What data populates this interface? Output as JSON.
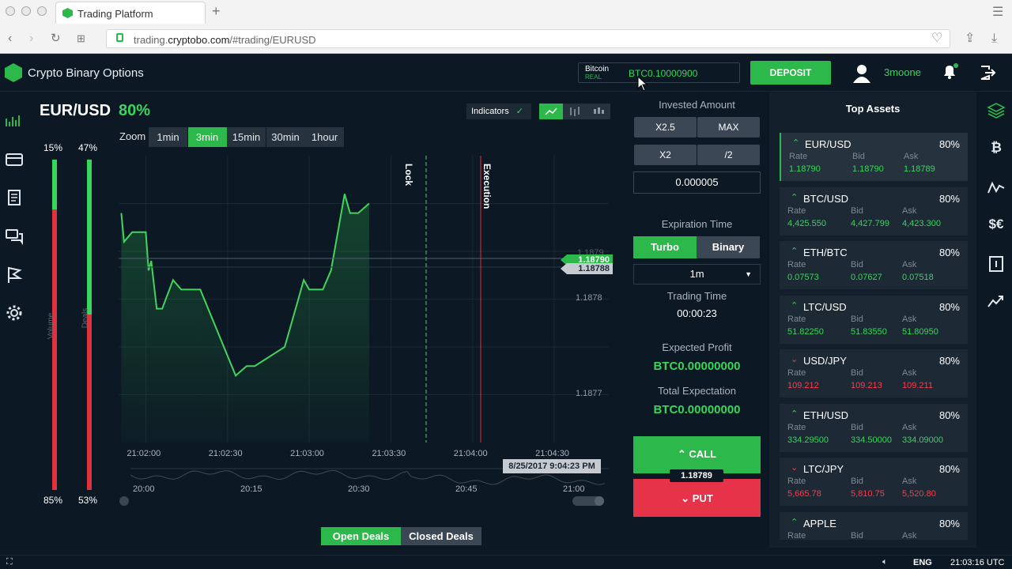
{
  "browser": {
    "tab_title": "Trading Platform",
    "url_prefix": "trading.",
    "url_domain": "cryptobo.com",
    "url_path": "/#trading/EURUSD"
  },
  "header": {
    "brand": "Crypto Binary Options",
    "currency_name": "Bitcoin",
    "account_type": "REAL",
    "balance": "BTC0.10000900",
    "deposit_label": "DEPOSIT",
    "username": "3moone"
  },
  "chart": {
    "pair": "EUR/USD",
    "payout": "80%",
    "indicators_label": "Indicators",
    "zoom_label": "Zoom",
    "zoom_options": [
      "1min",
      "3min",
      "15min",
      "30min",
      "1hour"
    ],
    "zoom_selected": "3min",
    "volume_label": "Volume",
    "deals_label": "Deals",
    "volume_top_pct": "15%",
    "volume_bottom_pct": "85%",
    "volume_up_fraction": 0.15,
    "deals_top_pct": "47%",
    "deals_bottom_pct": "53%",
    "deals_up_fraction": 0.47,
    "lock_label": "Lock",
    "execution_label": "Execution",
    "price_tag_1": "1.18790",
    "price_tag_2": "1.18788",
    "faint_tag": "1.1879",
    "y_ticks": [
      "1.1878",
      "1.1877"
    ],
    "x_ticks": [
      "21:02:00",
      "21:02:30",
      "21:03:00",
      "21:03:30",
      "21:04:00",
      "21:04:30"
    ],
    "nav_ticks": [
      "20:00",
      "20:15",
      "20:30",
      "20:45",
      "21:00"
    ],
    "timestamp_tooltip": "8/25/2017 9:04:23 PM"
  },
  "chart_data": {
    "type": "line",
    "x_range": [
      "21:01:50",
      "21:04:50"
    ],
    "ylim": [
      1.18765,
      1.18795
    ],
    "series": [
      {
        "x": [
          "21:01:51",
          "21:01:52",
          "21:01:55",
          "21:02:00",
          "21:02:01",
          "21:02:02",
          "21:02:04",
          "21:02:06",
          "21:02:10",
          "21:02:13",
          "21:02:17",
          "21:02:20",
          "21:02:33",
          "21:02:37",
          "21:02:40",
          "21:02:51",
          "21:02:55",
          "21:02:58",
          "21:03:00",
          "21:03:05",
          "21:03:08",
          "21:03:13",
          "21:03:14",
          "21:03:15",
          "21:03:18",
          "21:03:22"
        ],
        "y": [
          1.18789,
          1.18786,
          1.18787,
          1.18787,
          1.18783,
          1.18784,
          1.18779,
          1.18779,
          1.18782,
          1.18781,
          1.18781,
          1.18781,
          1.18772,
          1.18773,
          1.18773,
          1.18775,
          1.18779,
          1.18782,
          1.18781,
          1.18781,
          1.18783,
          1.18791,
          1.1879,
          1.18789,
          1.18789,
          1.1879
        ]
      }
    ]
  },
  "invest": {
    "title": "Invested Amount",
    "mult_buttons": [
      "X2.5",
      "MAX",
      "X2",
      "/2"
    ],
    "amount": "0.000005"
  },
  "expiration": {
    "title": "Expiration Time",
    "modes": [
      "Turbo",
      "Binary"
    ],
    "mode_selected": "Turbo",
    "duration": "1m",
    "trading_time_label": "Trading Time",
    "trading_time": "00:00:23",
    "expected_profit_label": "Expected Profit",
    "expected_profit": "BTC0.00000000",
    "total_expectation_label": "Total Expectation",
    "total_expectation": "BTC0.00000000",
    "call_label": "CALL",
    "current_price": "1.18789",
    "put_label": "PUT"
  },
  "deals_tabs": {
    "open": "Open Deals",
    "closed": "Closed Deals"
  },
  "assets": {
    "title": "Top Assets",
    "col_labels": [
      "Rate",
      "Bid",
      "Ask"
    ],
    "items": [
      {
        "name": "EUR/USD",
        "pct": "80%",
        "dir": "up",
        "rate": "1.18790",
        "bid": "1.18790",
        "ask": "1.18789",
        "color": "#38d65a"
      },
      {
        "name": "BTC/USD",
        "pct": "80%",
        "dir": "up",
        "rate": "4,425.550",
        "bid": "4,427.799",
        "ask": "4,423.300",
        "color": "#38d65a"
      },
      {
        "name": "ETH/BTC",
        "pct": "80%",
        "dir": "up",
        "rate": "0.07573",
        "bid": "0.07627",
        "ask": "0.07518",
        "color": "#38d65a"
      },
      {
        "name": "LTC/USD",
        "pct": "80%",
        "dir": "up",
        "rate": "51.82250",
        "bid": "51.83550",
        "ask": "51.80950",
        "color": "#38d65a"
      },
      {
        "name": "USD/JPY",
        "pct": "80%",
        "dir": "down",
        "rate": "109.212",
        "bid": "109.213",
        "ask": "109.211",
        "color": "#ff3b4b"
      },
      {
        "name": "ETH/USD",
        "pct": "80%",
        "dir": "up",
        "rate": "334.29500",
        "bid": "334.50000",
        "ask": "334.09000",
        "color": "#38d65a"
      },
      {
        "name": "LTC/JPY",
        "pct": "80%",
        "dir": "down",
        "rate": "5,665.78",
        "bid": "5,810.75",
        "ask": "5,520.80",
        "color": "#ff3b4b"
      },
      {
        "name": "APPLE",
        "pct": "80%",
        "dir": "up",
        "rate": "",
        "bid": "",
        "ask": "",
        "color": "#38d65a"
      }
    ]
  },
  "status": {
    "lang": "ENG",
    "clock": "21:03:16 UTC"
  },
  "colors": {
    "accent": "#2db84c",
    "up": "#38d65a",
    "down": "#ff3b4b",
    "bg": "#0c1824",
    "panel": "#13202c"
  }
}
